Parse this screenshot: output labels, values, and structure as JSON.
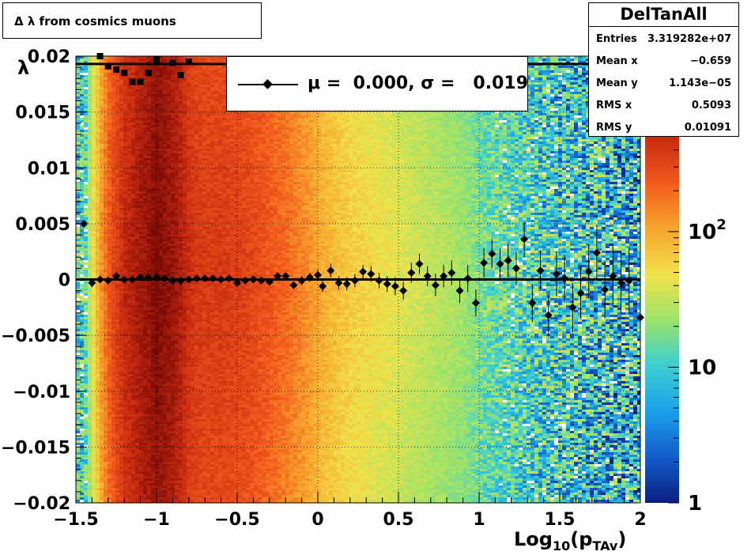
{
  "title": "Δ λ from cosmics muons",
  "stats": {
    "name": "DelTanAll",
    "rows": [
      {
        "label": "Entries",
        "value": "3.319282e+07"
      },
      {
        "label": "Mean x",
        "value": "−0.659"
      },
      {
        "label": "Mean y",
        "value": "1.143e−05"
      },
      {
        "label": "RMS x",
        "value": "0.5093"
      },
      {
        "label": "RMS y",
        "value": "0.01091"
      }
    ]
  },
  "legend": {
    "text": "μ =  0.000, σ =   0.019",
    "marker": "diamond"
  },
  "colors": {
    "fit_line": "#000000",
    "markers": "#000000",
    "palette": [
      "#0a1f7f",
      "#1359c9",
      "#1aa1e9",
      "#3fd0d0",
      "#9be36a",
      "#f0e24a",
      "#f7a52e",
      "#f2561c",
      "#c52a10",
      "#7a0a05"
    ]
  },
  "chart_data": {
    "type": "heatmap",
    "x_label": "Log",
    "x_label_sub": "10",
    "x_label_paren": "(p",
    "x_label_paren_sub": "TAv",
    "x_label_close": ")",
    "y_label": "λ",
    "xlim": [
      -1.5,
      2.0
    ],
    "ylim": [
      -0.02,
      0.02
    ],
    "x_ticks": [
      "−1.5",
      "−1",
      "−0.5",
      "0",
      "0.5",
      "1",
      "1.5",
      "2"
    ],
    "x_tick_values": [
      -1.5,
      -1.0,
      -0.5,
      0.0,
      0.5,
      1.0,
      1.5,
      2.0
    ],
    "y_ticks": [
      "−0.02",
      "−0.015",
      "−0.01",
      "−0.005",
      "0",
      "0.005",
      "0.01",
      "0.015",
      "0.02"
    ],
    "y_tick_values": [
      -0.02,
      -0.015,
      -0.01,
      -0.005,
      0.0,
      0.005,
      0.01,
      0.015,
      0.02
    ],
    "colorbar": {
      "scale": "log",
      "range": [
        1,
        500
      ],
      "labels": [
        {
          "value": 1,
          "text": "1"
        },
        {
          "value": 10,
          "text": "10"
        },
        {
          "value": 100,
          "text": "10",
          "exp": "2"
        }
      ]
    },
    "column_levels": [
      {
        "x": -1.45,
        "level": 0.35
      },
      {
        "x": -1.4,
        "level": 0.55
      },
      {
        "x": -1.35,
        "level": 0.68
      },
      {
        "x": -1.3,
        "level": 0.78
      },
      {
        "x": -1.25,
        "level": 0.84
      },
      {
        "x": -1.2,
        "level": 0.9
      },
      {
        "x": -1.15,
        "level": 0.92
      },
      {
        "x": -1.1,
        "level": 0.95
      },
      {
        "x": -1.05,
        "level": 0.97
      },
      {
        "x": -1.0,
        "level": 1.0
      },
      {
        "x": -0.95,
        "level": 0.98
      },
      {
        "x": -0.9,
        "level": 0.96
      },
      {
        "x": -0.85,
        "level": 0.93
      },
      {
        "x": -0.8,
        "level": 0.88
      },
      {
        "x": -0.75,
        "level": 0.86
      },
      {
        "x": -0.7,
        "level": 0.85
      },
      {
        "x": -0.6,
        "level": 0.85
      },
      {
        "x": -0.5,
        "level": 0.84
      },
      {
        "x": -0.4,
        "level": 0.82
      },
      {
        "x": -0.3,
        "level": 0.79
      },
      {
        "x": -0.2,
        "level": 0.76
      },
      {
        "x": -0.1,
        "level": 0.72
      },
      {
        "x": 0.0,
        "level": 0.67
      },
      {
        "x": 0.1,
        "level": 0.63
      },
      {
        "x": 0.2,
        "level": 0.6
      },
      {
        "x": 0.3,
        "level": 0.58
      },
      {
        "x": 0.4,
        "level": 0.56
      },
      {
        "x": 0.5,
        "level": 0.54
      },
      {
        "x": 0.6,
        "level": 0.52
      },
      {
        "x": 0.7,
        "level": 0.5
      },
      {
        "x": 0.8,
        "level": 0.48
      },
      {
        "x": 0.9,
        "level": 0.46
      },
      {
        "x": 1.0,
        "level": 0.42
      },
      {
        "x": 1.1,
        "level": 0.4
      },
      {
        "x": 1.2,
        "level": 0.38
      },
      {
        "x": 1.3,
        "level": 0.36
      },
      {
        "x": 1.4,
        "level": 0.34
      },
      {
        "x": 1.5,
        "level": 0.33
      },
      {
        "x": 1.6,
        "level": 0.32
      },
      {
        "x": 1.7,
        "level": 0.31
      },
      {
        "x": 1.8,
        "level": 0.3
      },
      {
        "x": 1.9,
        "level": 0.29
      },
      {
        "x": 2.0,
        "level": 0.28
      }
    ],
    "fit_mean": 0.0,
    "sigma_level": 0.0193,
    "mean_points": [
      {
        "x": -1.45,
        "y": 0.005,
        "err": 0.0
      },
      {
        "x": -1.4,
        "y": -0.0003,
        "err": 0.0004
      },
      {
        "x": -1.35,
        "y": 0.0,
        "err": 0.0002
      },
      {
        "x": -1.3,
        "y": -0.0001,
        "err": 0.0002
      },
      {
        "x": -1.25,
        "y": 0.0003,
        "err": 0.0001
      },
      {
        "x": -1.2,
        "y": 0.0,
        "err": 0.0001
      },
      {
        "x": -1.15,
        "y": 0.0,
        "err": 0.0001
      },
      {
        "x": -1.1,
        "y": 0.0002,
        "err": 0.0001
      },
      {
        "x": -1.05,
        "y": 0.0002,
        "err": 0.0001
      },
      {
        "x": -1.0,
        "y": 0.0002,
        "err": 0.0001
      },
      {
        "x": -0.95,
        "y": 0.0001,
        "err": 0.0001
      },
      {
        "x": -0.9,
        "y": -0.0001,
        "err": 0.0001
      },
      {
        "x": -0.85,
        "y": -0.0001,
        "err": 0.0001
      },
      {
        "x": -0.8,
        "y": 0.0,
        "err": 0.0001
      },
      {
        "x": -0.75,
        "y": 0.0001,
        "err": 0.0001
      },
      {
        "x": -0.7,
        "y": 0.0001,
        "err": 0.0001
      },
      {
        "x": -0.65,
        "y": 0.0001,
        "err": 0.0001
      },
      {
        "x": -0.6,
        "y": 0.0,
        "err": 0.0001
      },
      {
        "x": -0.55,
        "y": 0.0001,
        "err": 0.0001
      },
      {
        "x": -0.5,
        "y": -0.0003,
        "err": 0.0002
      },
      {
        "x": -0.45,
        "y": -0.0001,
        "err": 0.0002
      },
      {
        "x": -0.4,
        "y": 0.0,
        "err": 0.0002
      },
      {
        "x": -0.35,
        "y": -0.0001,
        "err": 0.0002
      },
      {
        "x": -0.3,
        "y": -0.0002,
        "err": 0.0002
      },
      {
        "x": -0.25,
        "y": 0.0003,
        "err": 0.0002
      },
      {
        "x": -0.2,
        "y": 0.0003,
        "err": 0.0003
      },
      {
        "x": -0.15,
        "y": -0.0005,
        "err": 0.0003
      },
      {
        "x": -0.1,
        "y": -0.0001,
        "err": 0.0004
      },
      {
        "x": -0.05,
        "y": 0.0002,
        "err": 0.0004
      },
      {
        "x": 0.0,
        "y": 0.0004,
        "err": 0.0005
      },
      {
        "x": 0.03,
        "y": -0.0006,
        "err": 0.0005
      },
      {
        "x": 0.08,
        "y": 0.0008,
        "err": 0.0006
      },
      {
        "x": 0.13,
        "y": -0.0003,
        "err": 0.0006
      },
      {
        "x": 0.18,
        "y": -0.0004,
        "err": 0.0006
      },
      {
        "x": 0.23,
        "y": -0.0001,
        "err": 0.0006
      },
      {
        "x": 0.28,
        "y": 0.0007,
        "err": 0.0006
      },
      {
        "x": 0.33,
        "y": 0.0005,
        "err": 0.0007
      },
      {
        "x": 0.38,
        "y": -0.0001,
        "err": 0.0007
      },
      {
        "x": 0.43,
        "y": -0.0004,
        "err": 0.0007
      },
      {
        "x": 0.48,
        "y": -0.0006,
        "err": 0.0008
      },
      {
        "x": 0.53,
        "y": -0.001,
        "err": 0.0008
      },
      {
        "x": 0.58,
        "y": 0.0006,
        "err": 0.0009
      },
      {
        "x": 0.63,
        "y": 0.0014,
        "err": 0.0009
      },
      {
        "x": 0.68,
        "y": 0.0003,
        "err": 0.0009
      },
      {
        "x": 0.73,
        "y": -0.0005,
        "err": 0.001
      },
      {
        "x": 0.78,
        "y": 0.0003,
        "err": 0.001
      },
      {
        "x": 0.83,
        "y": 0.0006,
        "err": 0.0011
      },
      {
        "x": 0.88,
        "y": -0.001,
        "err": 0.0011
      },
      {
        "x": 0.93,
        "y": 0.0001,
        "err": 0.0012
      },
      {
        "x": 0.98,
        "y": -0.0021,
        "err": 0.0012
      },
      {
        "x": 1.03,
        "y": 0.0015,
        "err": 0.0013
      },
      {
        "x": 1.08,
        "y": 0.0023,
        "err": 0.0013
      },
      {
        "x": 1.13,
        "y": 0.0014,
        "err": 0.0014
      },
      {
        "x": 1.18,
        "y": 0.0017,
        "err": 0.0015
      },
      {
        "x": 1.23,
        "y": 0.001,
        "err": 0.0015
      },
      {
        "x": 1.28,
        "y": 0.0036,
        "err": 0.0016
      },
      {
        "x": 1.33,
        "y": -0.0021,
        "err": 0.0017
      },
      {
        "x": 1.38,
        "y": 0.0008,
        "err": 0.0018
      },
      {
        "x": 1.43,
        "y": -0.0032,
        "err": 0.0019
      },
      {
        "x": 1.48,
        "y": 0.0005,
        "err": 0.002
      },
      {
        "x": 1.53,
        "y": 0.0001,
        "err": 0.0021
      },
      {
        "x": 1.58,
        "y": -0.0025,
        "err": 0.0022
      },
      {
        "x": 1.63,
        "y": -0.0012,
        "err": 0.0023
      },
      {
        "x": 1.68,
        "y": 0.0007,
        "err": 0.0024
      },
      {
        "x": 1.73,
        "y": 0.0024,
        "err": 0.0025
      },
      {
        "x": 1.78,
        "y": -0.0009,
        "err": 0.0026
      },
      {
        "x": 1.83,
        "y": 0.0003,
        "err": 0.0027
      },
      {
        "x": 1.88,
        "y": -0.0003,
        "err": 0.0028
      },
      {
        "x": 1.93,
        "y": -0.0001,
        "err": 0.003
      },
      {
        "x": 2.0,
        "y": -0.0034,
        "err": 0.003
      }
    ],
    "sigma_points": [
      {
        "x": -1.35,
        "y": 0.02
      },
      {
        "x": -1.3,
        "y": 0.0191
      },
      {
        "x": -1.25,
        "y": 0.0188
      },
      {
        "x": -1.2,
        "y": 0.0185
      },
      {
        "x": -1.15,
        "y": 0.0177
      },
      {
        "x": -1.1,
        "y": 0.0177
      },
      {
        "x": -1.05,
        "y": 0.0185
      },
      {
        "x": -1.0,
        "y": 0.0197
      },
      {
        "x": -0.9,
        "y": 0.0194
      },
      {
        "x": -0.85,
        "y": 0.0183
      },
      {
        "x": -0.8,
        "y": 0.0195
      }
    ]
  }
}
